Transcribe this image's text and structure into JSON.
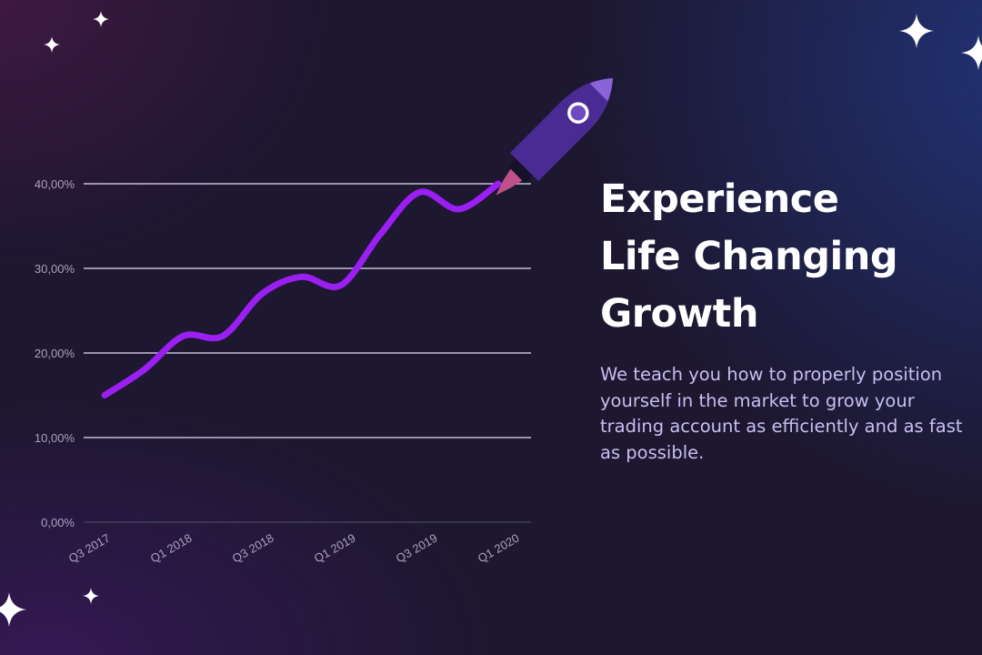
{
  "headline": {
    "line1": "Experience",
    "line2": "Life Changing",
    "line3": "Growth"
  },
  "body_text": "We teach you how to properly position yourself in the market to grow your trading account as efficiently and as fast as possible.",
  "colors": {
    "line": "#9b1ff2",
    "grid": "#c4bfd1",
    "headline": "#ffffff",
    "body": "#c8bff0",
    "rocket_body": "#4a2b93",
    "rocket_flame": "#c0508a"
  },
  "icons": [
    "rocket-icon",
    "sparkle-icon"
  ],
  "chart_data": {
    "type": "line",
    "title": "",
    "xlabel": "",
    "ylabel": "",
    "x_tick_labels": [
      "Q3 2017",
      "Q1 2018",
      "Q3 2018",
      "Q1 2019",
      "Q3 2019",
      "Q1 2020"
    ],
    "y_tick_labels": [
      "0,00%",
      "10,00%",
      "20,00%",
      "30,00%",
      "40,00%"
    ],
    "y_ticks": [
      0,
      10,
      20,
      30,
      40
    ],
    "ylim": [
      0,
      40
    ],
    "grid": true,
    "legend": "none",
    "x": [
      "Q3 2017",
      "Q4 2017",
      "Q1 2018",
      "Q2 2018",
      "Q3 2018",
      "Q4 2018",
      "Q1 2019",
      "Q2 2019",
      "Q3 2019",
      "Q4 2019",
      "Q1 2020"
    ],
    "values": [
      15,
      18,
      22,
      22,
      27,
      29,
      28,
      34,
      39,
      37,
      40
    ]
  }
}
